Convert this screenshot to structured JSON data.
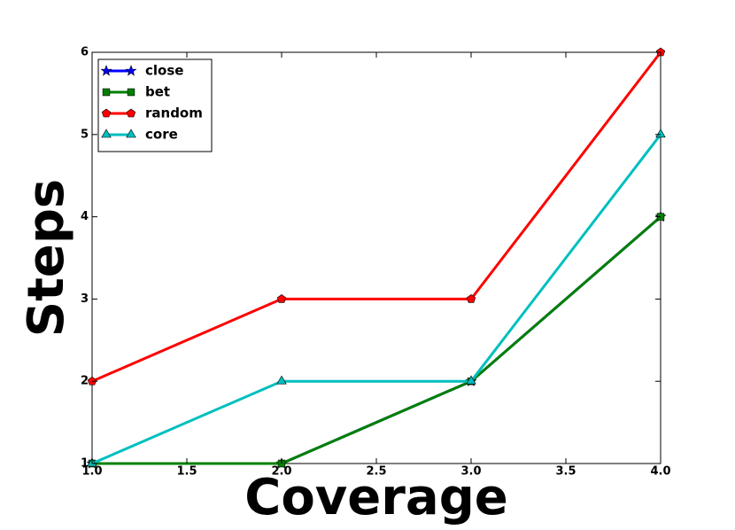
{
  "chart_data": {
    "type": "line",
    "x_label": "Coverage",
    "y_label": "Steps",
    "x": [
      1,
      2,
      3,
      4
    ],
    "series": [
      {
        "name": "close",
        "color": "#0000ff",
        "marker": "star",
        "values": [
          1,
          1,
          2,
          4
        ]
      },
      {
        "name": "bet",
        "color": "#008000",
        "marker": "square",
        "values": [
          1,
          1,
          2,
          4
        ]
      },
      {
        "name": "random",
        "color": "#ff0000",
        "marker": "pentagon",
        "values": [
          2,
          3,
          3,
          6
        ]
      },
      {
        "name": "core",
        "color": "#00bfbf",
        "marker": "triangle",
        "values": [
          1,
          2,
          2,
          5
        ]
      }
    ],
    "xlim": [
      1,
      4
    ],
    "xticks": [
      {
        "value": 1,
        "label": "1.0"
      },
      {
        "value": 1.5,
        "label": "1.5"
      },
      {
        "value": 2,
        "label": "2.0"
      },
      {
        "value": 2.5,
        "label": "2.5"
      },
      {
        "value": 3,
        "label": "3.0"
      },
      {
        "value": 3.5,
        "label": "3.5"
      },
      {
        "value": 4,
        "label": "4.0"
      }
    ],
    "ylim": [
      1,
      6
    ],
    "yticks": [
      1,
      2,
      3,
      4,
      5,
      6
    ],
    "grid": false,
    "legend": "upper-left"
  }
}
